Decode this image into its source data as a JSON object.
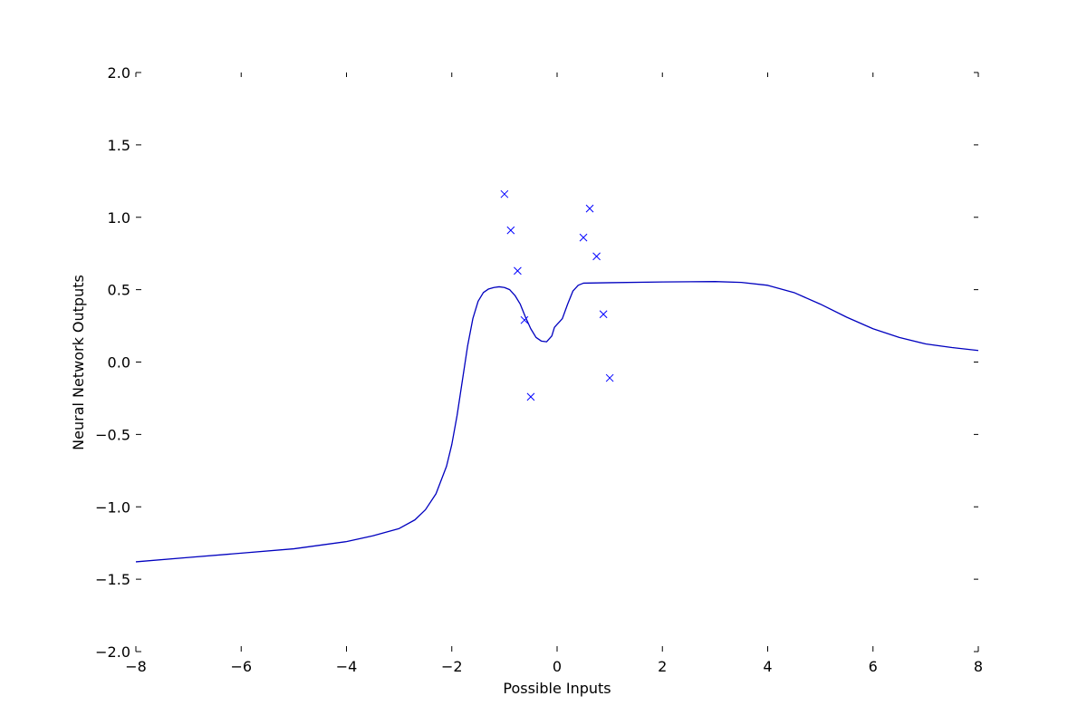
{
  "chart_data": {
    "type": "scatter",
    "title": "",
    "xlabel": "Possible Inputs",
    "ylabel": "Neural Network Outputs",
    "xlim": [
      -8,
      8
    ],
    "ylim": [
      -2.0,
      2.0
    ],
    "x_ticks": [
      -8,
      -6,
      -4,
      -2,
      0,
      2,
      4,
      6,
      8
    ],
    "x_tick_labels": [
      "−8",
      "−6",
      "−4",
      "−2",
      "0",
      "2",
      "4",
      "6",
      "8"
    ],
    "y_ticks": [
      2.0,
      1.5,
      1.0,
      0.5,
      0.0,
      -0.5,
      -1.0,
      -1.5,
      -2.0
    ],
    "y_tick_labels": [
      "2.0",
      "1.5",
      "1.0",
      "0.5",
      "0.0",
      "−0.5",
      "−1.0",
      "−1.5",
      "−2.0"
    ],
    "grid": false,
    "series": [
      {
        "kind": "points",
        "marker": "x",
        "color": "#0000ff",
        "points": [
          {
            "x": -1.0,
            "y": 1.16
          },
          {
            "x": -0.88,
            "y": 0.91
          },
          {
            "x": -0.75,
            "y": 0.63
          },
          {
            "x": -0.62,
            "y": 0.29
          },
          {
            "x": -0.5,
            "y": -0.24
          },
          {
            "x": 0.5,
            "y": 0.86
          },
          {
            "x": 0.62,
            "y": 1.06
          },
          {
            "x": 0.75,
            "y": 0.73
          },
          {
            "x": 0.88,
            "y": 0.33
          },
          {
            "x": 1.0,
            "y": -0.11
          }
        ]
      },
      {
        "kind": "line",
        "color": "#0000bf",
        "points": [
          {
            "x": -8.0,
            "y": -1.38
          },
          {
            "x": -7.0,
            "y": -1.35
          },
          {
            "x": -6.0,
            "y": -1.32
          },
          {
            "x": -5.0,
            "y": -1.29
          },
          {
            "x": -4.0,
            "y": -1.24
          },
          {
            "x": -3.5,
            "y": -1.2
          },
          {
            "x": -3.0,
            "y": -1.15
          },
          {
            "x": -2.7,
            "y": -1.09
          },
          {
            "x": -2.5,
            "y": -1.02
          },
          {
            "x": -2.3,
            "y": -0.91
          },
          {
            "x": -2.1,
            "y": -0.72
          },
          {
            "x": -2.0,
            "y": -0.57
          },
          {
            "x": -1.9,
            "y": -0.37
          },
          {
            "x": -1.8,
            "y": -0.13
          },
          {
            "x": -1.7,
            "y": 0.11
          },
          {
            "x": -1.6,
            "y": 0.3
          },
          {
            "x": -1.5,
            "y": 0.42
          },
          {
            "x": -1.4,
            "y": 0.48
          },
          {
            "x": -1.3,
            "y": 0.505
          },
          {
            "x": -1.2,
            "y": 0.515
          },
          {
            "x": -1.1,
            "y": 0.52
          },
          {
            "x": -1.0,
            "y": 0.515
          },
          {
            "x": -0.9,
            "y": 0.5
          },
          {
            "x": -0.8,
            "y": 0.46
          },
          {
            "x": -0.7,
            "y": 0.4
          },
          {
            "x": -0.6,
            "y": 0.31
          },
          {
            "x": -0.5,
            "y": 0.23
          },
          {
            "x": -0.4,
            "y": 0.17
          },
          {
            "x": -0.3,
            "y": 0.145
          },
          {
            "x": -0.2,
            "y": 0.14
          },
          {
            "x": -0.1,
            "y": 0.18
          },
          {
            "x": -0.05,
            "y": 0.24
          },
          {
            "x": 0.0,
            "y": 0.26
          },
          {
            "x": 0.05,
            "y": 0.28
          },
          {
            "x": 0.1,
            "y": 0.3
          },
          {
            "x": 0.2,
            "y": 0.4
          },
          {
            "x": 0.3,
            "y": 0.49
          },
          {
            "x": 0.4,
            "y": 0.53
          },
          {
            "x": 0.5,
            "y": 0.545
          },
          {
            "x": 1.0,
            "y": 0.548
          },
          {
            "x": 2.0,
            "y": 0.553
          },
          {
            "x": 3.0,
            "y": 0.556
          },
          {
            "x": 3.5,
            "y": 0.55
          },
          {
            "x": 4.0,
            "y": 0.53
          },
          {
            "x": 4.5,
            "y": 0.48
          },
          {
            "x": 5.0,
            "y": 0.4
          },
          {
            "x": 5.5,
            "y": 0.31
          },
          {
            "x": 6.0,
            "y": 0.23
          },
          {
            "x": 6.5,
            "y": 0.17
          },
          {
            "x": 7.0,
            "y": 0.125
          },
          {
            "x": 7.5,
            "y": 0.1
          },
          {
            "x": 8.0,
            "y": 0.08
          }
        ]
      }
    ]
  }
}
